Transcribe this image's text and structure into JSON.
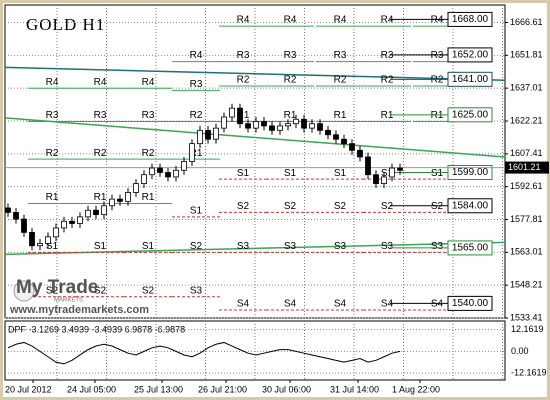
{
  "chart_data": {
    "type": "candlestick",
    "title": "GOLD H1",
    "open": [
      1583,
      1581,
      1578,
      1572,
      1566,
      1567,
      1570,
      1574,
      1577,
      1576,
      1579,
      1582,
      1580,
      1584,
      1587,
      1586,
      1590,
      1594,
      1598,
      1601,
      1599,
      1597,
      1600,
      1604,
      1612,
      1618,
      1614,
      1619,
      1624,
      1628,
      1621,
      1619,
      1622,
      1620,
      1618,
      1620,
      1621,
      1623,
      1619,
      1621,
      1618,
      1616,
      1614,
      1612,
      1609,
      1606,
      1598,
      1594,
      1597,
      1601
    ],
    "high": [
      1585,
      1583,
      1580,
      1574,
      1569,
      1572,
      1576,
      1579,
      1579,
      1581,
      1584,
      1584,
      1586,
      1589,
      1589,
      1592,
      1596,
      1600,
      1603,
      1603,
      1601,
      1602,
      1606,
      1614,
      1620,
      1620,
      1621,
      1626,
      1630,
      1630,
      1623,
      1624,
      1624,
      1622,
      1622,
      1623,
      1625,
      1625,
      1623,
      1623,
      1620,
      1618,
      1616,
      1614,
      1611,
      1608,
      1600,
      1599,
      1603,
      1603
    ],
    "low": [
      1579,
      1576,
      1570,
      1564,
      1564,
      1565,
      1568,
      1572,
      1574,
      1574,
      1577,
      1578,
      1578,
      1582,
      1584,
      1584,
      1588,
      1592,
      1596,
      1597,
      1595,
      1595,
      1598,
      1602,
      1610,
      1612,
      1612,
      1617,
      1622,
      1619,
      1617,
      1617,
      1618,
      1616,
      1616,
      1618,
      1619,
      1617,
      1617,
      1616,
      1614,
      1612,
      1610,
      1607,
      1604,
      1596,
      1592,
      1592,
      1595,
      1598
    ],
    "close": [
      1581,
      1578,
      1572,
      1566,
      1567,
      1570,
      1574,
      1577,
      1576,
      1579,
      1582,
      1580,
      1584,
      1587,
      1586,
      1590,
      1594,
      1598,
      1601,
      1599,
      1597,
      1600,
      1604,
      1612,
      1618,
      1614,
      1619,
      1624,
      1628,
      1621,
      1619,
      1622,
      1620,
      1618,
      1620,
      1621,
      1623,
      1619,
      1621,
      1618,
      1616,
      1614,
      1612,
      1609,
      1606,
      1598,
      1594,
      1597,
      1601,
      1600
    ],
    "ylim": [
      1533.41,
      1674.5
    ],
    "yticks": [
      1666.61,
      1651.81,
      1637.01,
      1622.21,
      1607.41,
      1592.61,
      1577.81,
      1563.01,
      1548.21,
      1533.41
    ],
    "current_price": 1601.21,
    "x_tick_labels": [
      "20 Jul 2012",
      "24 Jul 05:00",
      "25 Jul 13:00",
      "26 Jul 21:00",
      "30 Jul 06:00",
      "31 Jul 14:00",
      "1 Aug 22:00"
    ],
    "levels": [
      {
        "value": 1668,
        "label": "1668.00",
        "color": "#000000"
      },
      {
        "value": 1652,
        "label": "1652.00",
        "color": "#000000"
      },
      {
        "value": 1641,
        "label": "1641.00",
        "color": "#1f4e5a"
      },
      {
        "value": 1625,
        "label": "1625.00",
        "color": "#2e8b3a"
      },
      {
        "value": 1599,
        "label": "1599.00",
        "color": "#2e8b3a"
      },
      {
        "value": 1584,
        "label": "1584.00",
        "color": "#000000"
      },
      {
        "value": 1565,
        "label": "1565.00",
        "color": "#2e8b3a"
      },
      {
        "value": 1540,
        "label": "1540.00",
        "color": "#000000"
      }
    ],
    "trendlines": [
      {
        "start": 1646.4,
        "end": 1640.6,
        "color": "#1f6f78"
      },
      {
        "start": 1623.6,
        "end": 1606,
        "color": "#3aa655"
      },
      {
        "start": 1562.1,
        "end": 1567.5,
        "color": "#3aa655"
      }
    ],
    "pivots": [
      {
        "levels": [
          {
            "label": "R4",
            "value": 1637
          },
          {
            "label": "R3",
            "value": 1622
          },
          {
            "label": "R2",
            "value": 1605
          },
          {
            "label": "R1",
            "value": 1585
          },
          {
            "label": "S1",
            "value": 1563
          },
          {
            "label": "S2",
            "value": 1543
          }
        ]
      },
      {
        "levels": [
          {
            "label": "R4",
            "value": 1649
          },
          {
            "label": "R3",
            "value": 1636
          },
          {
            "label": "R2",
            "value": 1622
          },
          {
            "label": "R1",
            "value": 1605
          },
          {
            "label": "S1",
            "value": 1579
          },
          {
            "label": "S2",
            "value": 1563
          },
          {
            "label": "S3",
            "value": 1543
          }
        ]
      },
      {
        "levels": [
          {
            "label": "R4",
            "value": 1665
          },
          {
            "label": "R3",
            "value": 1649
          },
          {
            "label": "R2",
            "value": 1638
          },
          {
            "label": "R1",
            "value": 1622
          },
          {
            "label": "S1",
            "value": 1596
          },
          {
            "label": "S2",
            "value": 1581
          },
          {
            "label": "S3",
            "value": 1563
          },
          {
            "label": "S4",
            "value": 1537
          }
        ]
      },
      {
        "levels": [
          {
            "label": "R4",
            "value": 1665
          },
          {
            "label": "R3",
            "value": 1649
          },
          {
            "label": "R2",
            "value": 1638
          },
          {
            "label": "R1",
            "value": 1622
          },
          {
            "label": "S1",
            "value": 1596
          },
          {
            "label": "S2",
            "value": 1581
          },
          {
            "label": "S3",
            "value": 1563
          },
          {
            "label": "S4",
            "value": 1537
          }
        ]
      }
    ],
    "indicator": {
      "title": "DPF -3.1269 3.4939 -3.4939 6.9878 -6.9878",
      "values": [
        2,
        4,
        5,
        3,
        0,
        -3,
        -6,
        -7,
        -5,
        -2,
        1,
        3,
        4,
        3,
        1,
        -1,
        -2,
        0,
        2,
        3,
        2,
        0,
        -2,
        -3,
        -1,
        2,
        4,
        5,
        3,
        1,
        -1,
        -2,
        -1,
        0,
        1,
        1,
        0,
        -1,
        -2,
        -3,
        -4,
        -5,
        -6,
        -5,
        -4,
        -6,
        -5,
        -3,
        -1,
        0
      ],
      "ylim": [
        -16,
        17
      ],
      "yticks": [
        12.1619,
        {
          "value": 0,
          "label": "0.00"
        },
        -12.1619
      ]
    }
  },
  "watermark": {
    "brand": "My Trade",
    "sub": "MARKETS",
    "url": "www.mytrademarkets.com"
  }
}
